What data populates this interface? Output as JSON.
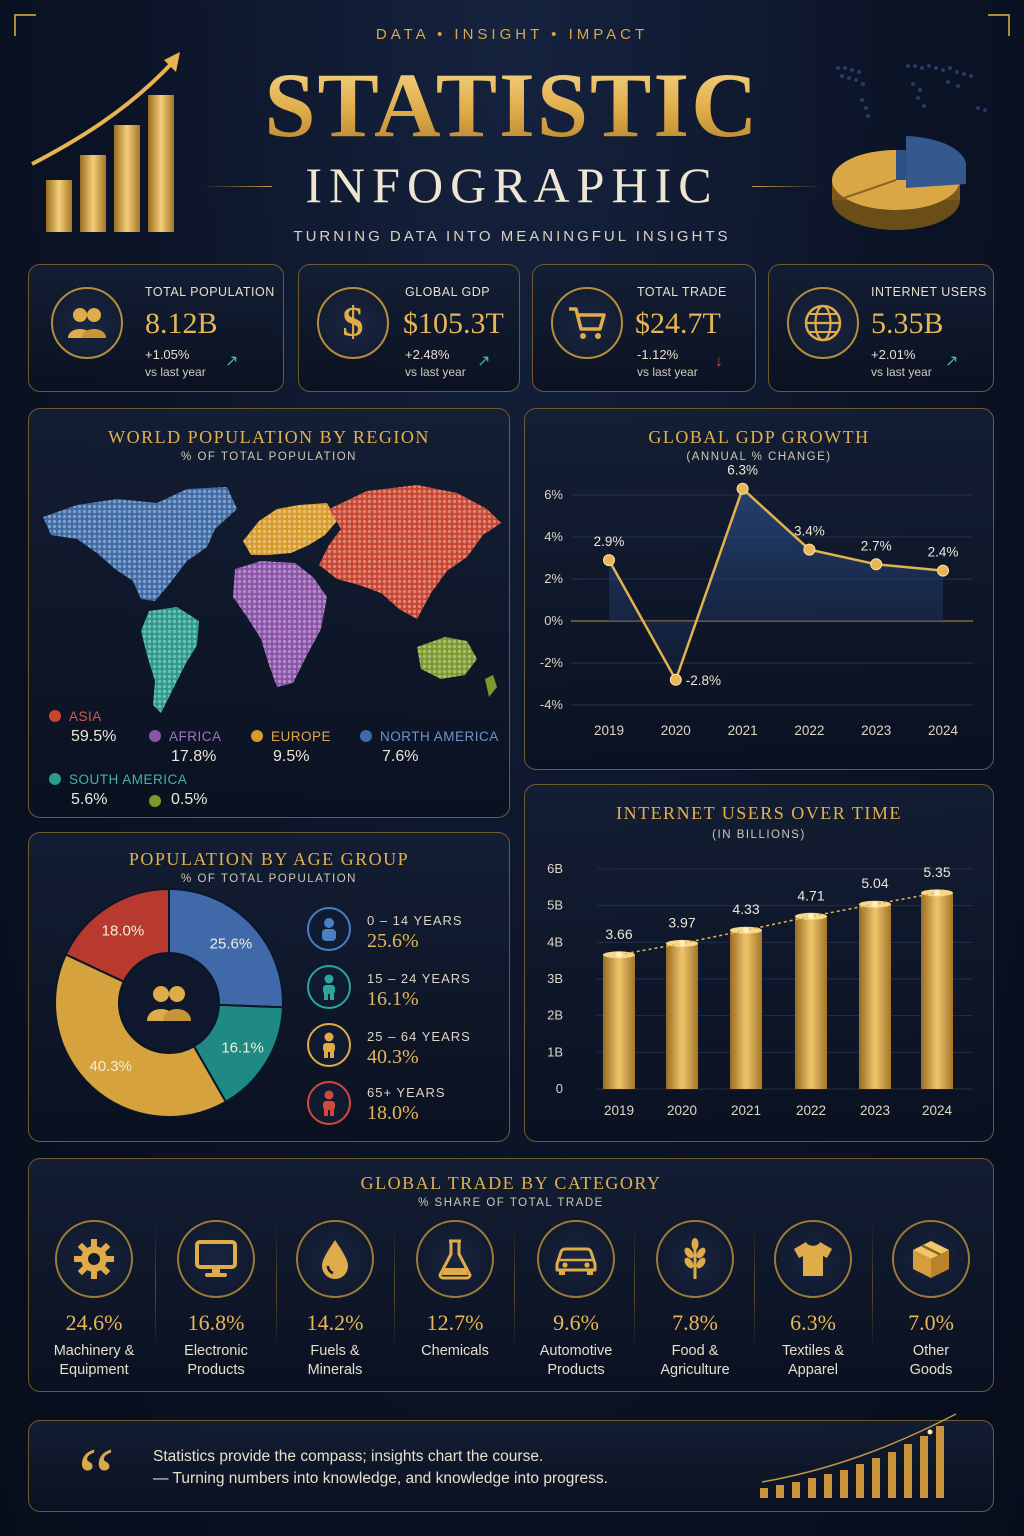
{
  "header": {
    "tagline": "DATA • INSIGHT • IMPACT",
    "title": "STATISTIC",
    "subtitle": "INFOGRAPHIC",
    "caption": "TURNING DATA INTO MEANINGFUL INSIGHTS"
  },
  "kpis": [
    {
      "label": "TOTAL POPULATION",
      "value": "8.12B",
      "change": "+1.05%",
      "vs": "vs last year",
      "trend": "up",
      "icon": "people-icon"
    },
    {
      "label": "GLOBAL GDP",
      "value": "$105.3T",
      "change": "+2.48%",
      "vs": "vs last year",
      "trend": "up",
      "icon": "dollar-icon"
    },
    {
      "label": "TOTAL TRADE",
      "value": "$24.7T",
      "change": "-1.12%",
      "vs": "vs last year",
      "trend": "down",
      "icon": "cart-icon"
    },
    {
      "label": "INTERNET USERS",
      "value": "5.35B",
      "change": "+2.01%",
      "vs": "vs last year",
      "trend": "up",
      "icon": "globe-icon"
    }
  ],
  "colors": {
    "gold": "#e2b24e",
    "asia": "#c8452f",
    "africa": "#8a52a8",
    "europe": "#d79a2b",
    "north_america": "#3e6aa6",
    "south_america": "#2a9a8a",
    "oceania": "#7c9a2c",
    "trend_up": "#3fbf8f",
    "trend_down": "#d8463b"
  },
  "region_panel": {
    "title": "WORLD POPULATION BY REGION",
    "subtitle": "% OF TOTAL POPULATION",
    "regions": [
      {
        "name": "ASIA",
        "value": "59.5%",
        "color": "#c8452f"
      },
      {
        "name": "AFRICA",
        "value": "17.8%",
        "color": "#8a52a8"
      },
      {
        "name": "EUROPE",
        "value": "9.5%",
        "color": "#d79a2b"
      },
      {
        "name": "NORTH AMERICA",
        "value": "7.6%",
        "color": "#3e6aa6"
      },
      {
        "name": "SOUTH AMERICA",
        "value": "5.6%",
        "color": "#2a9a8a"
      },
      {
        "name": "",
        "value": "0.5%",
        "color": "#7c9a2c"
      }
    ]
  },
  "gdp_panel": {
    "title": "GLOBAL GDP GROWTH",
    "subtitle": "(ANNUAL % CHANGE)"
  },
  "internet_panel": {
    "title": "INTERNET USERS OVER TIME",
    "subtitle": "(IN BILLIONS)"
  },
  "age_panel": {
    "title": "POPULATION BY AGE GROUP",
    "subtitle": "% OF TOTAL POPULATION",
    "groups": [
      {
        "label": "0 – 14 YEARS",
        "value": "25.6%",
        "color": "#4a7fc4"
      },
      {
        "label": "15 – 24 YEARS",
        "value": "16.1%",
        "color": "#2aa69a"
      },
      {
        "label": "25 – 64 YEARS",
        "value": "40.3%",
        "color": "#e0aa45"
      },
      {
        "label": "65+ YEARS",
        "value": "18.0%",
        "color": "#cf4a3a"
      }
    ]
  },
  "trade_panel": {
    "title": "GLOBAL TRADE BY CATEGORY",
    "subtitle": "% SHARE OF TOTAL TRADE",
    "categories": [
      {
        "value": "24.6%",
        "label": "Machinery &\nEquipment",
        "icon": "gear-icon"
      },
      {
        "value": "16.8%",
        "label": "Electronic\nProducts",
        "icon": "monitor-icon"
      },
      {
        "value": "14.2%",
        "label": "Fuels &\nMinerals",
        "icon": "drop-icon"
      },
      {
        "value": "12.7%",
        "label": "Chemicals",
        "icon": "flask-icon"
      },
      {
        "value": "9.6%",
        "label": "Automotive\nProducts",
        "icon": "car-icon"
      },
      {
        "value": "7.8%",
        "label": "Food &\nAgriculture",
        "icon": "wheat-icon"
      },
      {
        "value": "6.3%",
        "label": "Textiles &\nApparel",
        "icon": "shirt-icon"
      },
      {
        "value": "7.0%",
        "label": "Other\nGoods",
        "icon": "box-icon"
      }
    ]
  },
  "quote": {
    "line1": "Statistics provide the compass; insights chart the course.",
    "line2": "— Turning numbers into knowledge, and knowledge into progress."
  },
  "chart_data": [
    {
      "type": "line",
      "title": "GLOBAL GDP GROWTH",
      "subtitle": "(ANNUAL % CHANGE)",
      "x": [
        "2019",
        "2020",
        "2021",
        "2022",
        "2023",
        "2024"
      ],
      "values": [
        2.9,
        -2.8,
        6.3,
        3.4,
        2.7,
        2.4
      ],
      "data_labels": [
        "2.9%",
        "-2.8%",
        "6.3%",
        "3.4%",
        "2.7%",
        "2.4%"
      ],
      "y_ticks": [
        "6%",
        "4%",
        "2%",
        "0%",
        "-2%",
        "-4%"
      ],
      "ylim": [
        -4,
        6
      ],
      "grid": true
    },
    {
      "type": "bar",
      "title": "INTERNET USERS OVER TIME",
      "subtitle": "(IN BILLIONS)",
      "categories": [
        "2019",
        "2020",
        "2021",
        "2022",
        "2023",
        "2024"
      ],
      "values": [
        3.66,
        3.97,
        4.33,
        4.71,
        5.04,
        5.35
      ],
      "data_labels": [
        "3.66",
        "3.97",
        "4.33",
        "4.71",
        "5.04",
        "5.35"
      ],
      "y_ticks": [
        "6B",
        "5B",
        "4B",
        "3B",
        "2B",
        "1B",
        "0"
      ],
      "ylim": [
        0,
        6
      ]
    },
    {
      "type": "pie",
      "title": "POPULATION BY AGE GROUP",
      "labels": [
        "0 – 14 YEARS",
        "15 – 24 YEARS",
        "25 – 64 YEARS",
        "65+ YEARS"
      ],
      "values": [
        25.6,
        16.1,
        40.3,
        18.0
      ],
      "data_labels": [
        "25.6%",
        "16.1%",
        "40.3%",
        "18.0%"
      ],
      "colors": [
        "#3f69a8",
        "#1f8a84",
        "#d6a23e",
        "#b83a2e"
      ]
    }
  ]
}
